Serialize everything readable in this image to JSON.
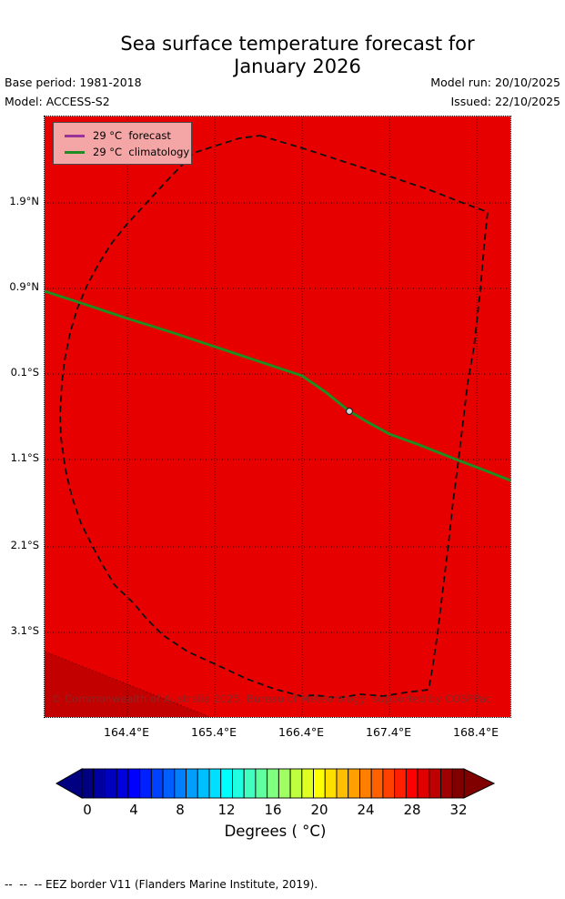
{
  "title": {
    "line1": "Sea surface temperature forecast for",
    "line2": "January 2026"
  },
  "header": {
    "base_period": "Base period: 1981-2018",
    "model": "Model: ACCESS-S2",
    "model_run": "Model run: 20/10/2025",
    "issued": "Issued: 22/10/2025"
  },
  "legend": {
    "items": [
      {
        "label": "29 °C  forecast",
        "color": "#993399"
      },
      {
        "label": "29 °C  climatology",
        "color": "#228b22"
      }
    ]
  },
  "map": {
    "fill_color": "#e60000",
    "secondary_fill_color": "#c30000",
    "eez_border_color": "#111111",
    "copyright": "© Commonwealth of Australia 2025, Bureau of Meteorology, supported by COSPPac"
  },
  "axes": {
    "y_ticks": [
      "1.9°N",
      "0.9°N",
      "0.1°S",
      "1.1°S",
      "2.1°S",
      "3.1°S"
    ],
    "x_ticks": [
      "164.4°E",
      "165.4°E",
      "166.4°E",
      "167.4°E",
      "168.4°E"
    ]
  },
  "colorbar": {
    "label": "Degrees ( °C)",
    "ticks": [
      "0",
      "4",
      "8",
      "12",
      "16",
      "20",
      "24",
      "28",
      "32"
    ],
    "cells": [
      "#000080",
      "#0000a0",
      "#0000bf",
      "#0000df",
      "#0000ff",
      "#0020ff",
      "#0040ff",
      "#0060ff",
      "#0080ff",
      "#009fff",
      "#00bfff",
      "#00dfff",
      "#00ffff",
      "#20ffdf",
      "#40ffbf",
      "#60ff9f",
      "#80ff80",
      "#9fff60",
      "#bfff40",
      "#dfff20",
      "#ffff00",
      "#ffdf00",
      "#ffbf00",
      "#ff9f00",
      "#ff8000",
      "#ff6000",
      "#ff4000",
      "#ff2000",
      "#ff0000",
      "#df0000",
      "#bf0000",
      "#9f0000",
      "#800000"
    ]
  },
  "footer": {
    "eez_note": "--  --  -- EEZ border V11 (Flanders Marine Institute, 2019)."
  },
  "chart_data": {
    "type": "map",
    "title": "Sea surface temperature forecast for January 2026",
    "model": "ACCESS-S2",
    "base_period": "1981-2018",
    "model_run": "20/10/2025",
    "issued": "22/10/2025",
    "x_axis": {
      "tick_labels": [
        "164.4°E",
        "165.4°E",
        "166.4°E",
        "167.4°E",
        "168.4°E"
      ],
      "approx_range_deg_e": [
        163.5,
        168.8
      ]
    },
    "y_axis": {
      "tick_labels": [
        "1.9°N",
        "0.9°N",
        "0.1°S",
        "1.1°S",
        "2.1°S",
        "3.1°S"
      ],
      "approx_range_deg": [
        -4.1,
        2.9
      ]
    },
    "series": [
      {
        "name": "29 °C forecast",
        "color": "#993399",
        "note": "legend entry; contour not visible on map"
      },
      {
        "name": "29 °C climatology",
        "color": "#228b22",
        "note": "green contour crossing map from (163.5E,0.9N) to (168.8E,1.3S)"
      }
    ],
    "overlays": [
      {
        "name": "EEZ border",
        "style": "black dashed closed polygon"
      },
      {
        "name": "site marker",
        "approx_position": [
          "166.9°E",
          "0.55°S"
        ]
      }
    ],
    "fill": {
      "description": "uniform SST field ≈ 29-30 °C rendered red",
      "color": "#e60000"
    },
    "colorbar": {
      "label": "Degrees ( °C)",
      "ticks": [
        0,
        4,
        8,
        12,
        16,
        20,
        24,
        28,
        32
      ],
      "range": [
        0,
        33
      ],
      "colormap": "jet",
      "extend": "both"
    }
  }
}
